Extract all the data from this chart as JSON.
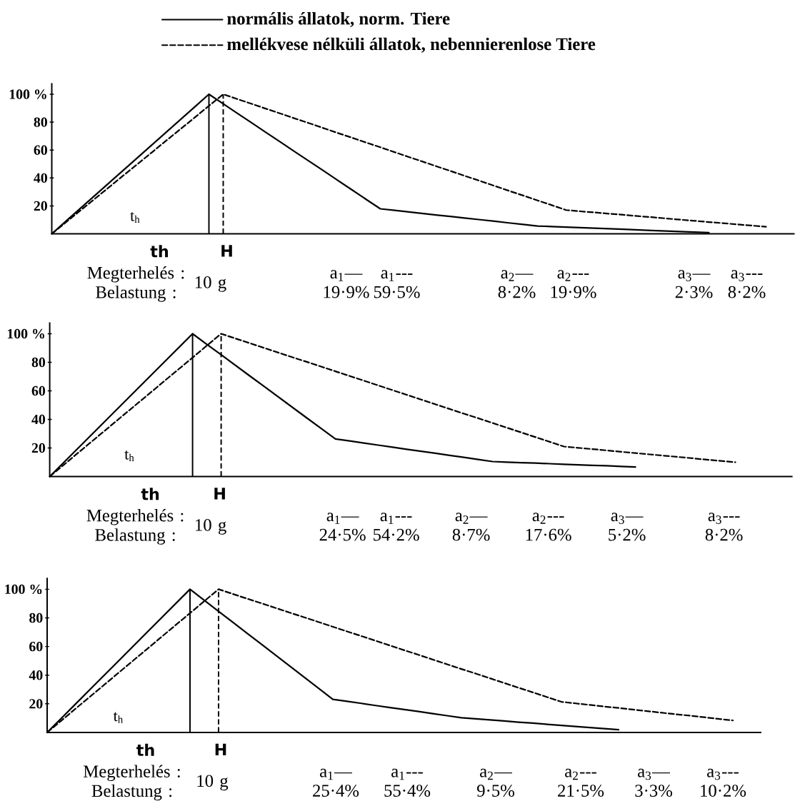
{
  "chart_data": [
    {
      "type": "line",
      "ylim": [
        0,
        108
      ],
      "yticks": [
        {
          "value": 20,
          "label": "20"
        },
        {
          "value": 40,
          "label": "40"
        },
        {
          "value": 60,
          "label": "60"
        },
        {
          "value": 80,
          "label": "80"
        },
        {
          "value": 100,
          "label": "100 %"
        }
      ],
      "legend": "top",
      "categories": [
        null,
        null,
        null,
        null,
        null,
        null,
        null,
        null,
        null,
        null,
        null,
        null,
        null,
        null,
        null,
        null,
        null,
        null,
        null,
        null,
        null,
        null,
        null,
        null,
        null,
        null,
        null,
        null,
        null,
        null,
        null,
        null,
        null,
        null,
        null,
        null,
        null,
        null,
        null,
        null,
        null,
        null,
        null,
        null,
        null,
        null,
        null,
        null,
        null,
        null,
        null,
        null,
        null
      ],
      "series": [
        {
          "name": "normális állatok, norm. Tiere",
          "color": "#000000",
          "line_style": "solid",
          "values": [
            0,
            9.1,
            18.2,
            27.3,
            36.4,
            45.5,
            54.5,
            63.6,
            72.7,
            81.8,
            90.9,
            100,
            93.2,
            86.3,
            79.5,
            72.6,
            65.8,
            58.9,
            52.1,
            45.3,
            38.4,
            31.6,
            24.7,
            17.9,
            16.8,
            15.7,
            14.5,
            13.4,
            12.3,
            11.2,
            10.1,
            9.0,
            7.8,
            6.7,
            5.6,
            5.2,
            4.8,
            4.4,
            4.0,
            3.6,
            3.2,
            2.8,
            2.4,
            2.0,
            1.6,
            1.2,
            0.8,
            null,
            null,
            null,
            null,
            null,
            null
          ]
        },
        {
          "name": "mellékvese nélküli állatok, nebennierenlose Tiere",
          "color": "#000000",
          "line_style": "dashed",
          "values": [
            0,
            8.3,
            16.7,
            25,
            33.3,
            41.7,
            50,
            58.3,
            66.7,
            75,
            83.3,
            91.7,
            100,
            96.5,
            93.1,
            89.6,
            86.2,
            82.7,
            79.3,
            75.8,
            72.3,
            68.9,
            65.4,
            62.0,
            58.5,
            55.0,
            51.6,
            48.1,
            44.7,
            41.2,
            37.8,
            34.3,
            30.8,
            27.4,
            23.9,
            20.5,
            17,
            16.1,
            15.3,
            14.4,
            13.6,
            12.7,
            11.9,
            11.0,
            10.1,
            9.3,
            8.4,
            7.6,
            6.7,
            5.9,
            5,
            null,
            null
          ]
        }
      ],
      "annotations": [
        "t$_{h}$",
        "th",
        "H",
        "Megterhelés : Belastung :",
        "10 g",
        "a$_{1}$— 19·9%",
        "a$_{1}$--- 59·5%",
        "a$_{2}$— 8·2%",
        "a$_{2}$--- 19·9%",
        "a$_{3}$— 2·3%",
        "a$_{3}$--- 8·2%"
      ]
    },
    {
      "type": "line",
      "ylim": [
        0,
        108
      ],
      "yticks": [
        {
          "value": 20,
          "label": "20"
        },
        {
          "value": 40,
          "label": "40"
        },
        {
          "value": 60,
          "label": "60"
        },
        {
          "value": 80,
          "label": "80"
        },
        {
          "value": 100,
          "label": "100 %"
        }
      ],
      "categories": [
        null,
        null,
        null,
        null,
        null,
        null,
        null,
        null,
        null,
        null,
        null,
        null,
        null,
        null,
        null,
        null,
        null,
        null,
        null,
        null,
        null,
        null,
        null,
        null,
        null,
        null,
        null,
        null,
        null,
        null,
        null,
        null,
        null,
        null,
        null,
        null,
        null,
        null,
        null,
        null,
        null,
        null,
        null,
        null,
        null,
        null,
        null,
        null,
        null,
        null,
        null,
        null,
        null
      ],
      "series": [
        {
          "color": "#000000",
          "line_style": "solid",
          "values": [
            0,
            10,
            20,
            30,
            40,
            50,
            60,
            70,
            80,
            90,
            100,
            92.6,
            85.3,
            77.9,
            70.5,
            63.2,
            55.8,
            48.4,
            41.0,
            33.7,
            26.3,
            24.9,
            23.4,
            22.0,
            20.6,
            19.1,
            17.7,
            16.3,
            14.8,
            13.4,
            11.9,
            10.5,
            10.1,
            9.7,
            9.4,
            9.0,
            8.6,
            8.2,
            7.8,
            7.5,
            7.1,
            6.7,
            null,
            null,
            null,
            null,
            null,
            null,
            null,
            null,
            null,
            null,
            null
          ]
        },
        {
          "color": "#000000",
          "line_style": "dashed",
          "values": [
            0,
            8.3,
            16.7,
            25,
            33.3,
            41.7,
            50,
            58.3,
            66.7,
            75,
            83.3,
            91.7,
            100,
            96.7,
            93.4,
            90.1,
            86.8,
            83.5,
            80.3,
            77.0,
            73.7,
            70.4,
            67.1,
            63.8,
            60.5,
            57.2,
            53.9,
            50.6,
            47.3,
            44.0,
            40.8,
            37.5,
            34.2,
            30.9,
            27.6,
            24.3,
            21,
            20.1,
            19.2,
            18.3,
            17.3,
            16.4,
            15.5,
            14.6,
            13.7,
            12.8,
            11.8,
            10.9,
            10,
            null,
            null,
            null,
            null
          ]
        }
      ],
      "annotations": [
        "t$_{h}$",
        "th",
        "H",
        "Megterhelés : Belastung :",
        "10 g",
        "a$_{1}$— 24·5%",
        "a$_{1}$--- 54·2%",
        "a$_{2}$— 8·7%",
        "a$_{2}$--- 17·6%",
        "a$_{3}$— 5·2%",
        "a$_{3}$--- 8·2%"
      ]
    },
    {
      "type": "line",
      "ylim": [
        0,
        108
      ],
      "yticks": [
        {
          "value": 20,
          "label": "20"
        },
        {
          "value": 40,
          "label": "40"
        },
        {
          "value": 60,
          "label": "60"
        },
        {
          "value": 80,
          "label": "80"
        },
        {
          "value": 100,
          "label": "100 %"
        }
      ],
      "categories": [
        null,
        null,
        null,
        null,
        null,
        null,
        null,
        null,
        null,
        null,
        null,
        null,
        null,
        null,
        null,
        null,
        null,
        null,
        null,
        null,
        null,
        null,
        null,
        null,
        null,
        null,
        null,
        null,
        null,
        null,
        null,
        null,
        null,
        null,
        null,
        null,
        null,
        null,
        null,
        null,
        null,
        null,
        null,
        null,
        null,
        null,
        null,
        null,
        null,
        null,
        null
      ],
      "series": [
        {
          "color": "#000000",
          "line_style": "solid",
          "values": [
            0,
            10,
            20,
            30,
            40,
            50,
            60,
            70,
            80,
            90,
            100,
            92.3,
            84.6,
            76.9,
            69.2,
            61.6,
            53.9,
            46.2,
            38.5,
            30.8,
            23.1,
            21.7,
            20.3,
            18.8,
            17.4,
            16.0,
            14.6,
            13.1,
            11.7,
            10.3,
            9.5,
            8.8,
            8.0,
            7.2,
            6.5,
            5.7,
            4.9,
            4.2,
            3.4,
            2.7,
            1.9,
            null,
            null,
            null,
            null,
            null,
            null,
            null,
            null,
            null,
            null
          ]
        },
        {
          "color": "#000000",
          "line_style": "dashed",
          "values": [
            0,
            8.3,
            16.7,
            25,
            33.3,
            41.7,
            50,
            58.3,
            66.7,
            75,
            83.3,
            91.7,
            100,
            96.7,
            93.4,
            90.2,
            86.9,
            83.6,
            80.4,
            77.1,
            73.8,
            70.5,
            67.3,
            64.0,
            60.7,
            57.4,
            54.2,
            50.9,
            47.6,
            44.3,
            41.1,
            37.8,
            34.5,
            31.2,
            28.0,
            24.7,
            21.4,
            20.3,
            19.2,
            18.1,
            17.1,
            16.0,
            14.9,
            13.8,
            12.7,
            11.7,
            10.6,
            9.5,
            8.4,
            null,
            null
          ]
        }
      ],
      "annotations": [
        "t$_{h}$",
        "th",
        "H",
        "Megterhelés : Belastung :",
        "10 g",
        "a$_{1}$— 25·4%",
        "a$_{1}$--- 55·4%",
        "a$_{2}$— 9·5%",
        "a$_{2}$--- 21·5%",
        "a$_{3}$— 3·3%",
        "a$_{3}$--- 10·2%"
      ]
    }
  ]
}
